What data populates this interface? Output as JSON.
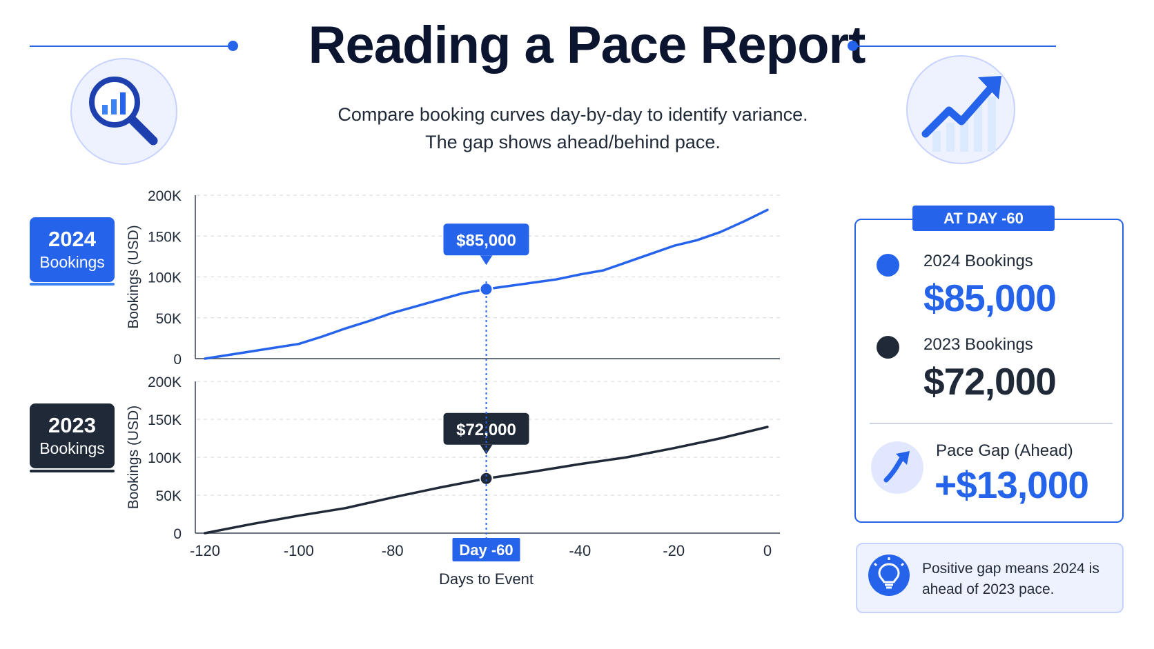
{
  "header": {
    "title": "Reading a Pace Report",
    "subtitle_line1": "Compare booking curves day-by-day to identify variance.",
    "subtitle_line2": "The gap shows ahead/behind pace."
  },
  "icons": {
    "left": "magnifier-bar-chart-icon",
    "right": "trending-up-arrow-icon",
    "gap": "arrow-up-right-icon",
    "tip": "lightbulb-icon"
  },
  "colors": {
    "accent": "#2563eb",
    "dark": "#1f2937",
    "panel_bg": "#eef2ff"
  },
  "series_tags": {
    "s2024": {
      "year": "2024",
      "label": "Bookings"
    },
    "s2023": {
      "year": "2023",
      "label": "Bookings"
    }
  },
  "chart_data": {
    "type": "line",
    "xlabel": "Days to Event",
    "ylabel": "Bookings (USD)",
    "x_ticks": [
      "-120",
      "-100",
      "-80",
      "Day -60",
      "-40",
      "-20",
      "0"
    ],
    "x_tick_values": [
      -120,
      -100,
      -80,
      -60,
      -40,
      -20,
      0
    ],
    "y_ticks": [
      "0",
      "50K",
      "100K",
      "150K",
      "200K"
    ],
    "y_tick_values": [
      0,
      50000,
      100000,
      150000,
      200000
    ],
    "xlim": [
      -120,
      0
    ],
    "ylim": [
      0,
      200000
    ],
    "grid": true,
    "highlight_x": -60,
    "highlight_label": "Day -60",
    "series": [
      {
        "name": "2024 Bookings",
        "color": "#2563eb",
        "annotation": "$85,000",
        "x": [
          -120,
          -110,
          -100,
          -95,
          -90,
          -85,
          -80,
          -75,
          -70,
          -65,
          -60,
          -55,
          -50,
          -45,
          -40,
          -35,
          -30,
          -25,
          -20,
          -15,
          -10,
          -5,
          0
        ],
        "y": [
          0,
          9000,
          18000,
          27000,
          37000,
          46000,
          56000,
          64000,
          72000,
          80000,
          85000,
          89000,
          93000,
          97000,
          103000,
          108000,
          118000,
          128000,
          138000,
          145000,
          155000,
          168000,
          182000
        ]
      },
      {
        "name": "2023 Bookings",
        "color": "#1f2937",
        "annotation": "$72,000",
        "x": [
          -120,
          -110,
          -100,
          -90,
          -80,
          -70,
          -60,
          -50,
          -40,
          -30,
          -20,
          -10,
          0
        ],
        "y": [
          0,
          12000,
          23000,
          33000,
          47000,
          60000,
          72000,
          81000,
          91000,
          100000,
          112000,
          125000,
          140000
        ]
      }
    ]
  },
  "callout": {
    "badge": "AT DAY -60",
    "b2024_label": "2024 Bookings",
    "b2024_value": "$85,000",
    "b2023_label": "2023 Bookings",
    "b2023_value": "$72,000",
    "gap_label": "Pace Gap (Ahead)",
    "gap_value": "+$13,000"
  },
  "tip": {
    "text": "Positive gap means 2024 is ahead of 2023 pace."
  }
}
